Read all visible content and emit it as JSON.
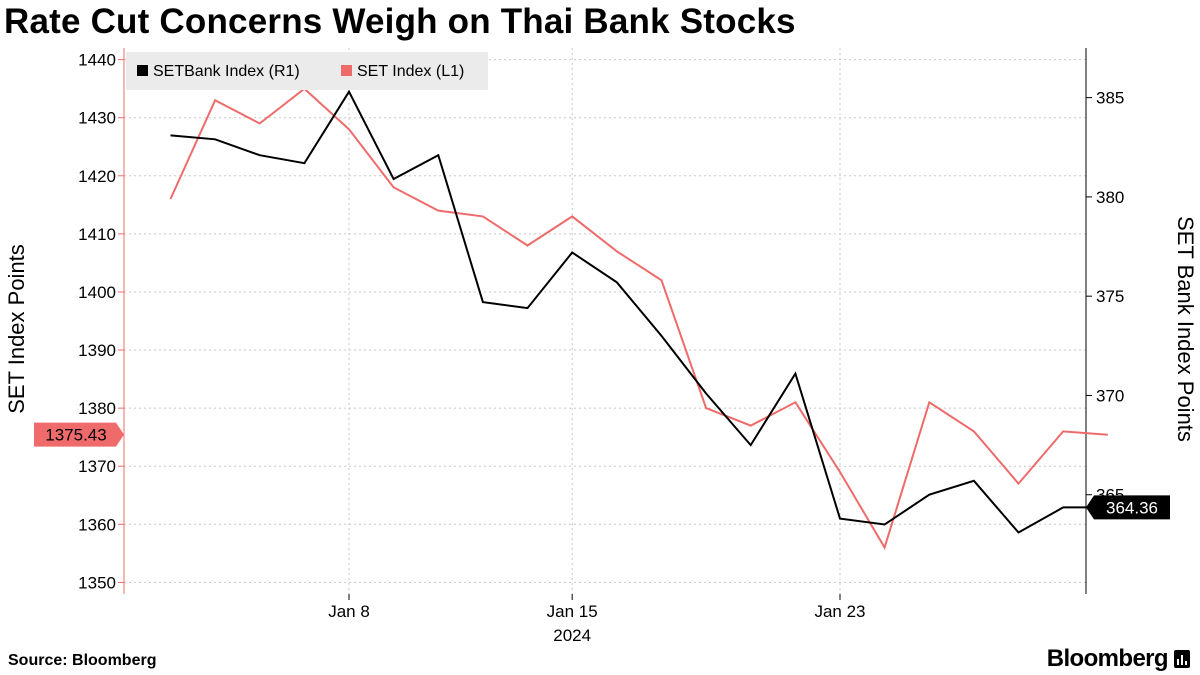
{
  "title": "Rate Cut Concerns Weigh on Thai Bank Stocks",
  "source": "Source: Bloomberg",
  "brand": "Bloomberg",
  "chart_data": {
    "type": "line",
    "year_label": "2024",
    "x_ticks": [
      "Jan 8",
      "Jan 15",
      "Jan 23"
    ],
    "x": [
      "2024-01-02",
      "2024-01-03",
      "2024-01-04",
      "2024-01-05",
      "2024-01-08",
      "2024-01-09",
      "2024-01-10",
      "2024-01-11",
      "2024-01-12",
      "2024-01-15",
      "2024-01-16",
      "2024-01-17",
      "2024-01-18",
      "2024-01-19",
      "2024-01-22",
      "2024-01-23",
      "2024-01-24",
      "2024-01-25",
      "2024-01-26",
      "2024-01-29",
      "2024-01-30",
      "2024-01-31"
    ],
    "left_axis": {
      "label": "SET Index Points",
      "ylim": [
        1348,
        1442
      ],
      "ticks": [
        1350,
        1360,
        1370,
        1380,
        1390,
        1400,
        1410,
        1420,
        1430,
        1440
      ],
      "last_value_label": "1375.43",
      "last_value": 1375.43
    },
    "right_axis": {
      "label": "SET Bank Index Points",
      "ylim": [
        360,
        387.5
      ],
      "ticks": [
        365,
        370,
        375,
        380,
        385
      ],
      "last_value_label": "364.36",
      "last_value": 364.36
    },
    "legend": {
      "position": "top-left"
    },
    "series": [
      {
        "name": "SETBank Index (R1)",
        "axis": "right",
        "color": "#000000",
        "values": [
          383.1,
          382.9,
          382.1,
          381.7,
          385.3,
          380.9,
          382.1,
          374.7,
          374.4,
          377.2,
          375.7,
          373.0,
          370.1,
          367.5,
          371.1,
          363.8,
          363.5,
          365.0,
          365.7,
          363.1,
          364.36,
          364.36
        ]
      },
      {
        "name": "SET Index (L1)",
        "axis": "left",
        "color": "#ef6b6b",
        "values": [
          1416,
          1433,
          1429,
          1435,
          1428,
          1418,
          1414,
          1413,
          1408,
          1413,
          1407,
          1402,
          1380,
          1377,
          1381,
          1369,
          1356,
          1381,
          1376,
          1367,
          1376,
          1375.43
        ]
      }
    ]
  }
}
